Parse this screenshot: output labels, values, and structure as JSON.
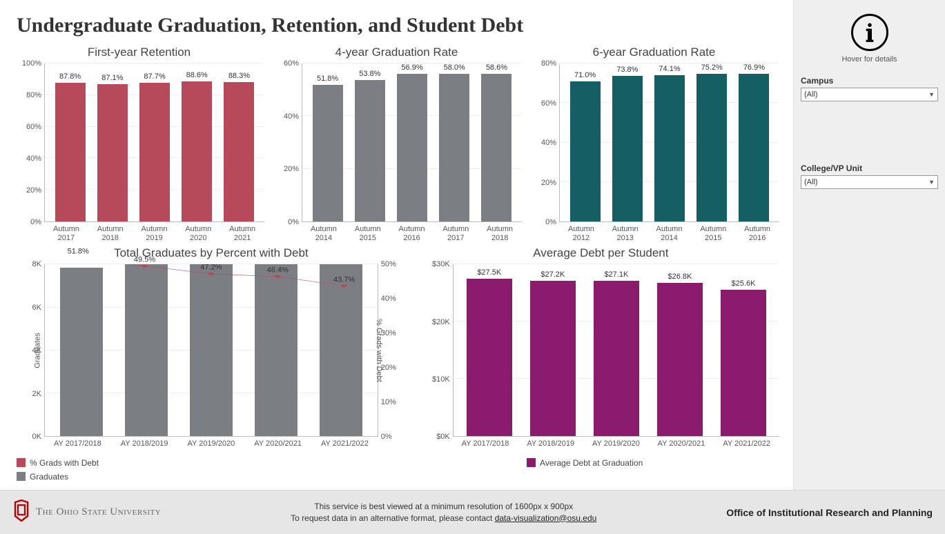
{
  "title": "Undergraduate Graduation, Retention, and Student Debt",
  "colors": {
    "retention_bar": "#b74a5a",
    "grad4_bar": "#7b7f83",
    "grad6_bar": "#155e63",
    "combo_bar": "#7b7f83",
    "combo_line": "#b74a5a",
    "debt_bar": "#8a1a6b",
    "gridline": "#eeeeee",
    "axis": "#bbbbbb"
  },
  "retention": {
    "title": "First-year Retention",
    "ymax": 100,
    "ytick_step": 20,
    "tick_suffix": "%",
    "bar_color": "#b74a5a",
    "categories": [
      "Autumn\n2017",
      "Autumn\n2018",
      "Autumn\n2019",
      "Autumn\n2020",
      "Autumn\n2021"
    ],
    "values": [
      87.8,
      87.1,
      87.7,
      88.6,
      88.3
    ],
    "value_labels": [
      "87.8%",
      "87.1%",
      "87.7%",
      "88.6%",
      "88.3%"
    ]
  },
  "grad4": {
    "title": "4-year Graduation Rate",
    "ymax": 60,
    "ytick_step": 20,
    "tick_suffix": "%",
    "bar_color": "#7b7f83",
    "categories": [
      "Autumn\n2014",
      "Autumn\n2015",
      "Autumn\n2016",
      "Autumn\n2017",
      "Autumn\n2018"
    ],
    "values": [
      51.8,
      53.8,
      56.9,
      58.0,
      58.6
    ],
    "value_labels": [
      "51.8%",
      "53.8%",
      "56.9%",
      "58.0%",
      "58.6%"
    ]
  },
  "grad6": {
    "title": "6-year Graduation Rate",
    "ymax": 80,
    "ytick_step": 20,
    "tick_suffix": "%",
    "bar_color": "#155e63",
    "categories": [
      "Autumn\n2012",
      "Autumn\n2013",
      "Autumn\n2014",
      "Autumn\n2015",
      "Autumn\n2016"
    ],
    "values": [
      71.0,
      73.8,
      74.1,
      75.2,
      76.9
    ],
    "value_labels": [
      "71.0%",
      "73.8%",
      "74.1%",
      "75.2%",
      "76.9%"
    ]
  },
  "combo": {
    "title": "Total Graduates by Percent with Debt",
    "left_ymax": 8000,
    "left_tick_step": 2000,
    "left_tick_suffix": "K",
    "left_tick_divisor": 1000,
    "left_axis_title": "Graduates",
    "right_ymax": 50,
    "right_tick_step": 10,
    "right_tick_suffix": "%",
    "right_axis_title": "% Grads with Debt",
    "bar_color": "#7b7f83",
    "line_color": "#b74a5a",
    "categories": [
      "AY 2017/2018",
      "AY 2018/2019",
      "AY 2019/2020",
      "AY 2020/2021",
      "AY 2021/2022"
    ],
    "bar_values": [
      7850,
      8050,
      8400,
      8350,
      8400
    ],
    "line_values": [
      51.8,
      49.5,
      47.2,
      46.4,
      43.7
    ],
    "line_labels": [
      "51.8%",
      "49.5%",
      "47.2%",
      "46.4%",
      "43.7%"
    ]
  },
  "avgdebt": {
    "title": "Average Debt per Student",
    "ymax": 30000,
    "ytick_step": 10000,
    "tick_prefix": "$",
    "tick_suffix": "K",
    "tick_divisor": 1000,
    "bar_color": "#8a1a6b",
    "categories": [
      "AY 2017/2018",
      "AY 2018/2019",
      "AY 2019/2020",
      "AY 2020/2021",
      "AY 2021/2022"
    ],
    "values": [
      27500,
      27200,
      27100,
      26800,
      25600
    ],
    "value_labels": [
      "$27.5K",
      "$27.2K",
      "$27.1K",
      "$26.8K",
      "$25.6K"
    ]
  },
  "legend1": {
    "items": [
      {
        "label": "% Grads with Debt",
        "color": "#b74a5a"
      },
      {
        "label": "Graduates",
        "color": "#7b7f83"
      }
    ]
  },
  "legend2": {
    "items": [
      {
        "label": "Average Debt at Graduation",
        "color": "#8a1a6b"
      }
    ]
  },
  "sidebar": {
    "hover_text": "Hover for details",
    "filters": [
      {
        "label": "Campus",
        "value": "(All)"
      },
      {
        "label": "College/VP Unit",
        "value": "(All)"
      }
    ]
  },
  "footer": {
    "university": "The Ohio State University",
    "line1": "This service is best viewed at a minimum resolution of 1600px x 900px",
    "line2_prefix": "To request data in an alternative format, please contact ",
    "email": "data-visualization@osu.edu",
    "office": "Office of Institutional Research and Planning"
  }
}
